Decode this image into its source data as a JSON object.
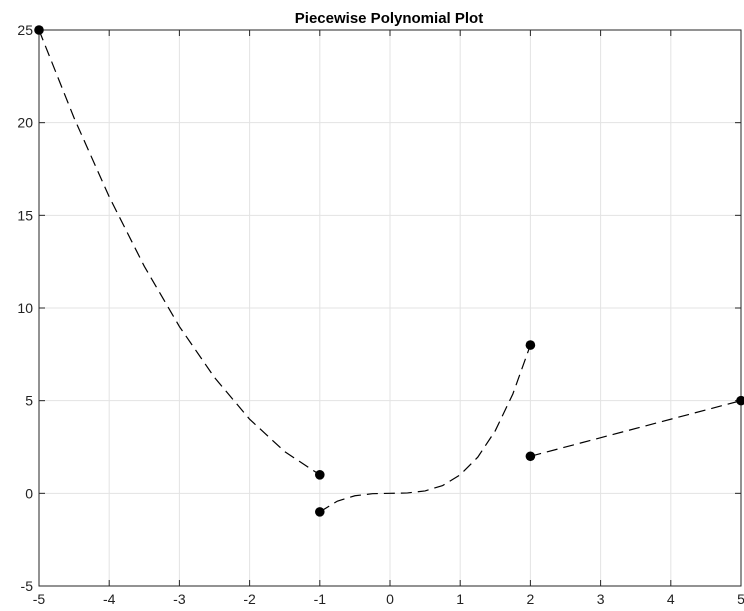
{
  "chart_data": {
    "type": "line",
    "title": "Piecewise Polynomial Plot",
    "xlabel": "",
    "ylabel": "",
    "xlim": [
      -5,
      5
    ],
    "ylim": [
      -5,
      25
    ],
    "xticks": [
      -5,
      -4,
      -3,
      -2,
      -1,
      0,
      1,
      2,
      3,
      4,
      5
    ],
    "yticks": [
      -5,
      0,
      5,
      10,
      15,
      20,
      25
    ],
    "grid": true,
    "line_style": "dashed",
    "line_color": "#000000",
    "marker_color": "#000000",
    "series": [
      {
        "x": [
          -5,
          -4.5,
          -4,
          -3.5,
          -3,
          -2.5,
          -2,
          -1.5,
          -1
        ],
        "y": [
          25,
          20.25,
          16,
          12.25,
          9,
          6.25,
          4,
          2.25,
          1
        ]
      },
      {
        "x": [
          -1,
          -0.75,
          -0.5,
          -0.25,
          0,
          0.25,
          0.5,
          0.75,
          1,
          1.25,
          1.5,
          1.75,
          2
        ],
        "y": [
          -1,
          -0.42,
          -0.13,
          -0.02,
          0,
          0.02,
          0.13,
          0.42,
          1,
          1.95,
          3.38,
          5.36,
          8
        ]
      },
      {
        "x": [
          2,
          5
        ],
        "y": [
          2,
          5
        ]
      }
    ],
    "markers": [
      {
        "x": -5,
        "y": 25
      },
      {
        "x": -1,
        "y": 1
      },
      {
        "x": -1,
        "y": -1
      },
      {
        "x": 2,
        "y": 8
      },
      {
        "x": 2,
        "y": 2
      },
      {
        "x": 5,
        "y": 5
      }
    ]
  }
}
